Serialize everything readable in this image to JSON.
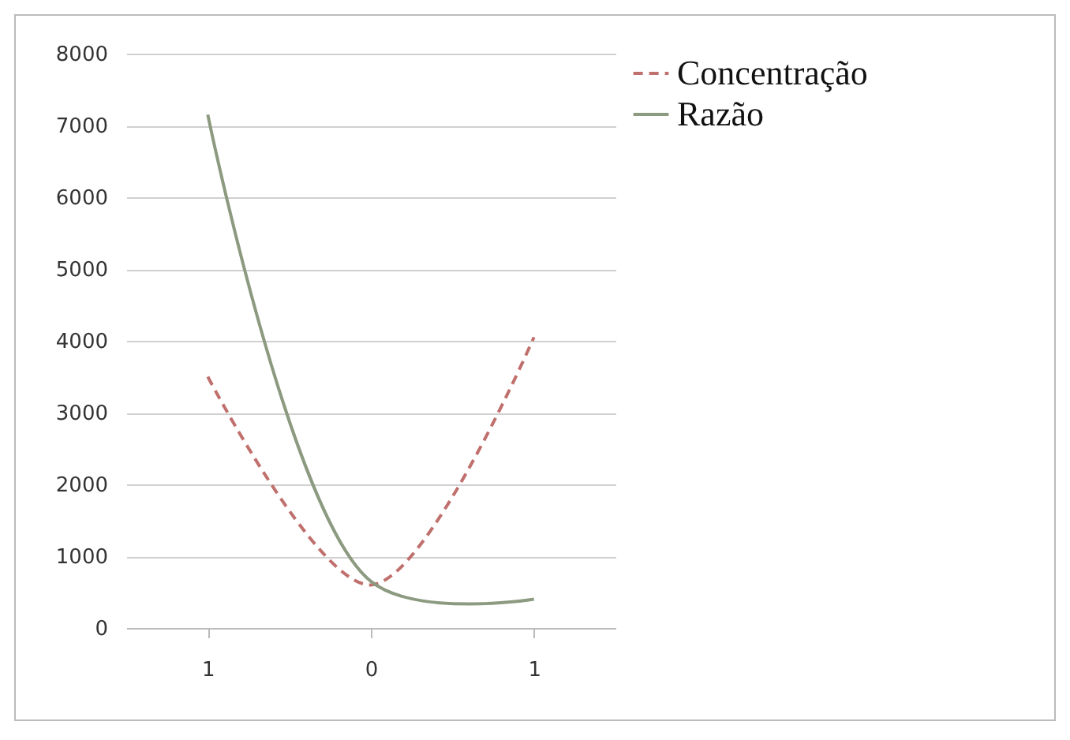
{
  "chart_data": {
    "type": "line",
    "categories": [
      "1",
      "0",
      "1"
    ],
    "series": [
      {
        "name": "Concentração",
        "color": "#c0706c",
        "line_style": "dashed",
        "values": [
          3500,
          600,
          4050
        ]
      },
      {
        "name": "Razão",
        "color": "#8c9a80",
        "line_style": "solid",
        "values": [
          7150,
          650,
          400
        ]
      }
    ],
    "ylim": [
      0,
      8000
    ],
    "yticks": [
      0,
      1000,
      2000,
      3000,
      4000,
      5000,
      6000,
      7000,
      8000
    ],
    "grid": "y",
    "legend": "right",
    "marker": "none"
  }
}
